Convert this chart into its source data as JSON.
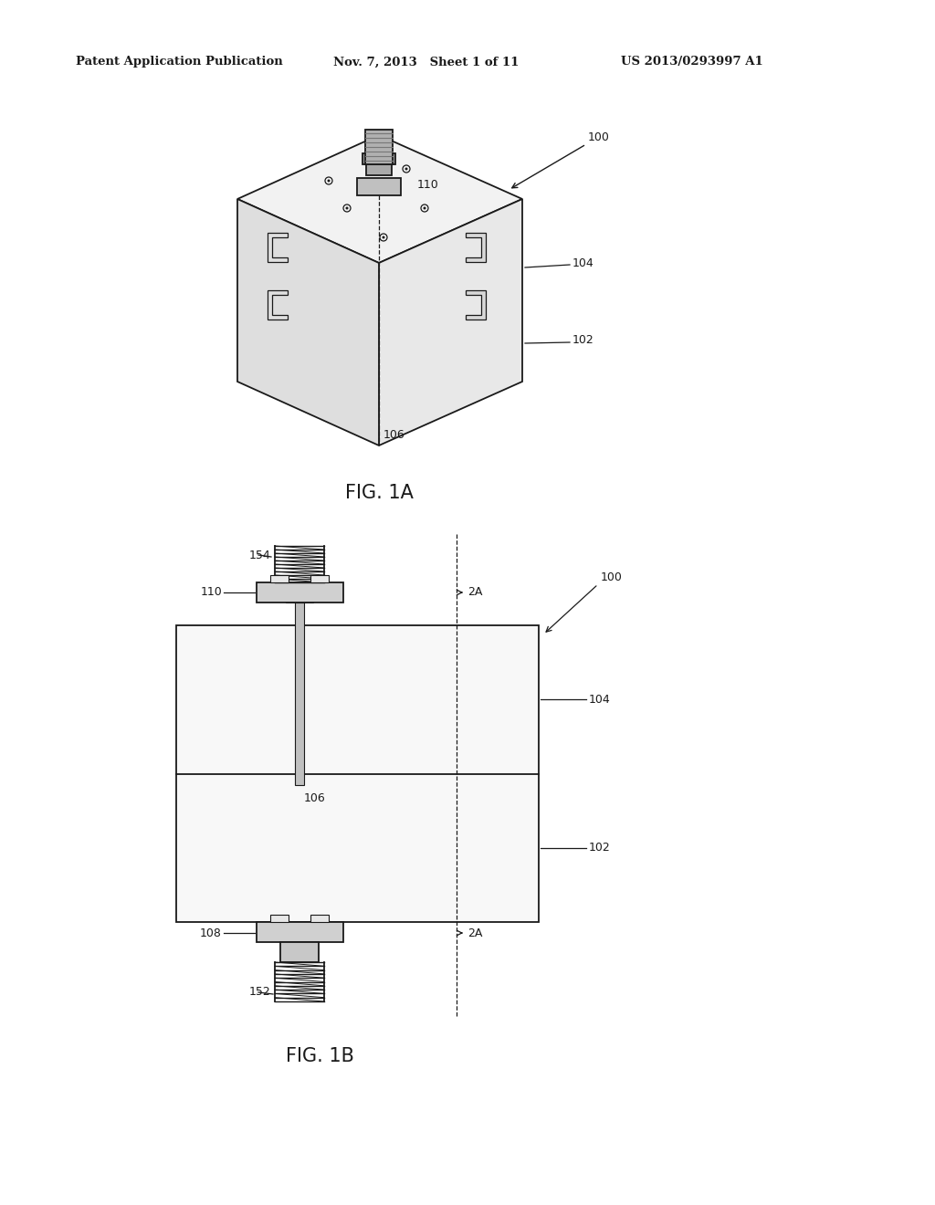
{
  "background_color": "#ffffff",
  "header_left": "Patent Application Publication",
  "header_mid": "Nov. 7, 2013   Sheet 1 of 11",
  "header_right": "US 2013/0293997 A1",
  "fig1a_label": "FIG. 1A",
  "fig1b_label": "FIG. 1B",
  "lc": "#1a1a1a",
  "labels": {
    "100_1a": "100",
    "110_1a": "110",
    "104_1a": "104",
    "102_1a": "102",
    "106_1a": "106",
    "100_1b": "100",
    "154_1b": "154",
    "110_1b": "110",
    "2A_top": "2A",
    "104_1b": "104",
    "106_1b": "106",
    "102_1b": "102",
    "108_1b": "108",
    "152_1b": "152",
    "2A_bot": "2A"
  }
}
